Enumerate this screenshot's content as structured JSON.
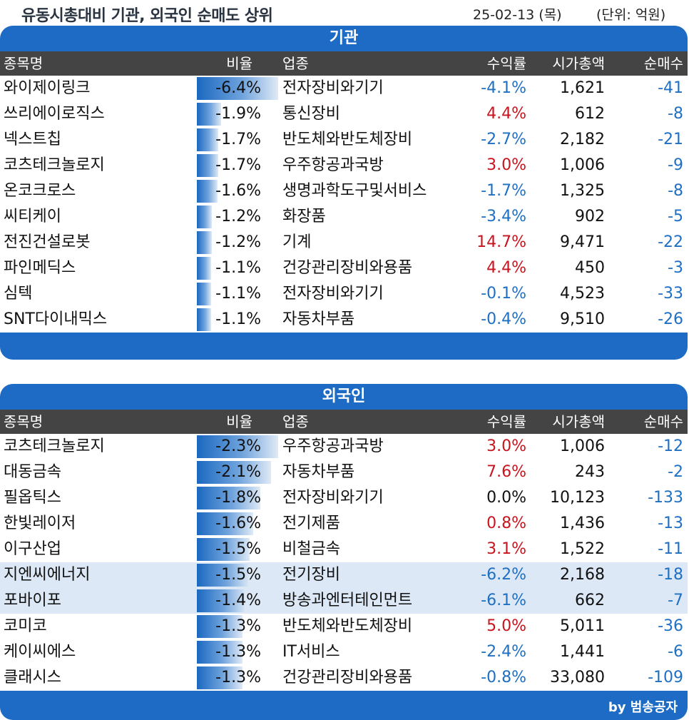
{
  "title": "유동시총대비 기관, 외국인 순매도 상위",
  "date": "25-02-13 (목)",
  "unit": "(단위: 억원)",
  "credit": "by 범송공자",
  "headers": {
    "name": "종목명",
    "ratio": "비율",
    "industry": "업종",
    "return": "수익률",
    "cap": "시가총액",
    "net": "순매수"
  },
  "colors": {
    "panel": "#1d6bc4",
    "header": "#444444",
    "negative": "#1f6fc2",
    "positive": "#c8141e"
  },
  "chart_data": [
    {
      "type": "table",
      "title": "기관",
      "rows": [
        {
          "name": "와이제이링크",
          "ratio": "-6.4%",
          "ratio_value": -6.4,
          "industry": "전자장비와기기",
          "return": "-4.1%",
          "return_value": -4.1,
          "cap": "1,621",
          "net": "-41"
        },
        {
          "name": "쓰리에이로직스",
          "ratio": "-1.9%",
          "ratio_value": -1.9,
          "industry": "통신장비",
          "return": "4.4%",
          "return_value": 4.4,
          "cap": "612",
          "net": "-8"
        },
        {
          "name": "넥스트칩",
          "ratio": "-1.7%",
          "ratio_value": -1.7,
          "industry": "반도체와반도체장비",
          "return": "-2.7%",
          "return_value": -2.7,
          "cap": "2,182",
          "net": "-21"
        },
        {
          "name": "코츠테크놀로지",
          "ratio": "-1.7%",
          "ratio_value": -1.7,
          "industry": "우주항공과국방",
          "return": "3.0%",
          "return_value": 3.0,
          "cap": "1,006",
          "net": "-9"
        },
        {
          "name": "온코크로스",
          "ratio": "-1.6%",
          "ratio_value": -1.6,
          "industry": "생명과학도구및서비스",
          "return": "-1.7%",
          "return_value": -1.7,
          "cap": "1,325",
          "net": "-8"
        },
        {
          "name": "씨티케이",
          "ratio": "-1.2%",
          "ratio_value": -1.2,
          "industry": "화장품",
          "return": "-3.4%",
          "return_value": -3.4,
          "cap": "902",
          "net": "-5"
        },
        {
          "name": "전진건설로봇",
          "ratio": "-1.2%",
          "ratio_value": -1.2,
          "industry": "기계",
          "return": "14.7%",
          "return_value": 14.7,
          "cap": "9,471",
          "net": "-22"
        },
        {
          "name": "파인메딕스",
          "ratio": "-1.1%",
          "ratio_value": -1.1,
          "industry": "건강관리장비와용품",
          "return": "4.4%",
          "return_value": 4.4,
          "cap": "450",
          "net": "-3"
        },
        {
          "name": "심텍",
          "ratio": "-1.1%",
          "ratio_value": -1.1,
          "industry": "전자장비와기기",
          "return": "-0.1%",
          "return_value": -0.1,
          "cap": "4,523",
          "net": "-33"
        },
        {
          "name": "SNT다이내믹스",
          "ratio": "-1.1%",
          "ratio_value": -1.1,
          "industry": "자동차부품",
          "return": "-0.4%",
          "return_value": -0.4,
          "cap": "9,510",
          "net": "-26"
        }
      ]
    },
    {
      "type": "table",
      "title": "외국인",
      "rows": [
        {
          "name": "코츠테크놀로지",
          "ratio": "-2.3%",
          "ratio_value": -2.3,
          "industry": "우주항공과국방",
          "return": "3.0%",
          "return_value": 3.0,
          "cap": "1,006",
          "net": "-12"
        },
        {
          "name": "대동금속",
          "ratio": "-2.1%",
          "ratio_value": -2.1,
          "industry": "자동차부품",
          "return": "7.6%",
          "return_value": 7.6,
          "cap": "243",
          "net": "-2"
        },
        {
          "name": "필옵틱스",
          "ratio": "-1.8%",
          "ratio_value": -1.8,
          "industry": "전자장비와기기",
          "return": "0.0%",
          "return_value": 0.0,
          "cap": "10,123",
          "net": "-133"
        },
        {
          "name": "한빛레이저",
          "ratio": "-1.6%",
          "ratio_value": -1.6,
          "industry": "전기제품",
          "return": "0.8%",
          "return_value": 0.8,
          "cap": "1,436",
          "net": "-13"
        },
        {
          "name": "이구산업",
          "ratio": "-1.5%",
          "ratio_value": -1.5,
          "industry": "비철금속",
          "return": "3.1%",
          "return_value": 3.1,
          "cap": "1,522",
          "net": "-11"
        },
        {
          "name": "지엔씨에너지",
          "ratio": "-1.5%",
          "ratio_value": -1.5,
          "industry": "전기장비",
          "return": "-6.2%",
          "return_value": -6.2,
          "cap": "2,168",
          "net": "-18",
          "highlight": true
        },
        {
          "name": "포바이포",
          "ratio": "-1.4%",
          "ratio_value": -1.4,
          "industry": "방송과엔터테인먼트",
          "return": "-6.1%",
          "return_value": -6.1,
          "cap": "662",
          "net": "-7",
          "highlight": true
        },
        {
          "name": "코미코",
          "ratio": "-1.3%",
          "ratio_value": -1.3,
          "industry": "반도체와반도체장비",
          "return": "5.0%",
          "return_value": 5.0,
          "cap": "5,011",
          "net": "-36"
        },
        {
          "name": "케이씨에스",
          "ratio": "-1.3%",
          "ratio_value": -1.3,
          "industry": "IT서비스",
          "return": "-2.4%",
          "return_value": -2.4,
          "cap": "1,441",
          "net": "-6"
        },
        {
          "name": "클래시스",
          "ratio": "-1.3%",
          "ratio_value": -1.3,
          "industry": "건강관리장비와용품",
          "return": "-0.8%",
          "return_value": -0.8,
          "cap": "33,080",
          "net": "-109"
        }
      ]
    }
  ]
}
